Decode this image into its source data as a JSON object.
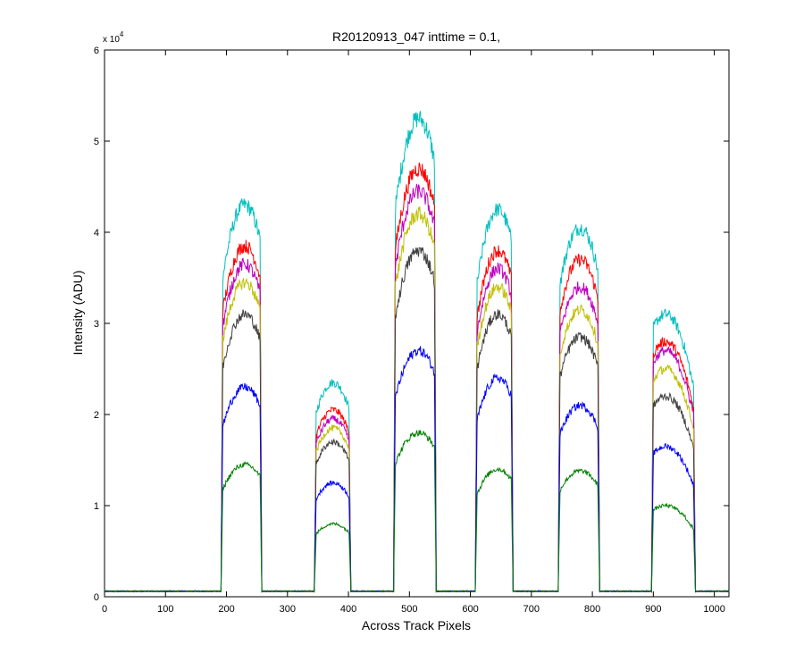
{
  "chart_data": {
    "type": "line",
    "title": "R20120913_047 inttime = 0.1,",
    "xlabel": "Across Track Pixels",
    "ylabel": "Intensity (ADU)",
    "y_exponent_label": "x 10",
    "y_exponent_power": "4",
    "xlim": [
      0,
      1024
    ],
    "ylim": [
      0,
      60000
    ],
    "xticks": [
      0,
      100,
      200,
      300,
      400,
      500,
      600,
      700,
      800,
      900,
      1000
    ],
    "xtick_labels": [
      "0",
      "100",
      "200",
      "300",
      "400",
      "500",
      "600",
      "700",
      "800",
      "900",
      "1000"
    ],
    "yticks": [
      0,
      10000,
      20000,
      30000,
      40000,
      50000,
      60000
    ],
    "ytick_labels": [
      "0",
      "1",
      "2",
      "3",
      "4",
      "5",
      "6"
    ],
    "grid": false,
    "legend": "none",
    "baseline": 600,
    "plateaus": [
      {
        "x_start": 192,
        "x_end": 257,
        "peak_x": 230
      },
      {
        "x_start": 345,
        "x_end": 403,
        "peak_x": 375
      },
      {
        "x_start": 475,
        "x_end": 543,
        "peak_x": 515
      },
      {
        "x_start": 609,
        "x_end": 669,
        "peak_x": 645
      },
      {
        "x_start": 745,
        "x_end": 811,
        "peak_x": 780
      },
      {
        "x_start": 898,
        "x_end": 968,
        "peak_x": 920
      }
    ],
    "series": [
      {
        "color": "#00BFBF",
        "peaks": [
          43000,
          23500,
          52500,
          42500,
          40500,
          31000
        ]
      },
      {
        "color": "#FF0000",
        "peaks": [
          38500,
          20500,
          47000,
          38000,
          37000,
          28000
        ]
      },
      {
        "color": "#BF00BF",
        "peaks": [
          36500,
          19500,
          44500,
          36000,
          34000,
          27000
        ]
      },
      {
        "color": "#BFBF00",
        "peaks": [
          34500,
          18500,
          42000,
          34000,
          31500,
          25000
        ]
      },
      {
        "color": "#404040",
        "peaks": [
          31000,
          17000,
          38000,
          31000,
          28500,
          22000
        ]
      },
      {
        "color": "#0000FF",
        "peaks": [
          23000,
          12500,
          27000,
          24000,
          21000,
          16500
        ]
      },
      {
        "color": "#008000",
        "peaks": [
          14500,
          8000,
          18000,
          14000,
          13800,
          10000
        ]
      }
    ]
  }
}
